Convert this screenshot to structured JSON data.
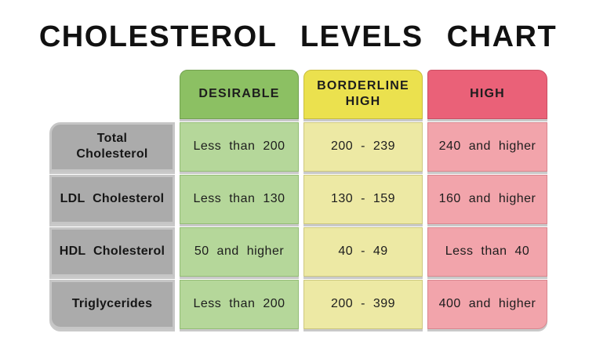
{
  "title": "CHOLESTEROL  LEVELS  CHART",
  "chart_data": {
    "type": "table",
    "title": "CHOLESTEROL LEVELS CHART",
    "column_headers": [
      "DESIRABLE",
      "BORDERLINE HIGH",
      "HIGH"
    ],
    "rows": [
      {
        "label": "Total Cholesterol",
        "values": [
          "Less than 200",
          "200 - 239",
          "240 and higher"
        ]
      },
      {
        "label": "LDL Cholesterol",
        "values": [
          "Less than 130",
          "130 - 159",
          "160 and higher"
        ]
      },
      {
        "label": "HDL Cholesterol",
        "values": [
          "50 and higher",
          "40 - 49",
          "Less than 40"
        ]
      },
      {
        "label": "Triglycerides",
        "values": [
          "Less than 200",
          "200 - 399",
          "400 and higher"
        ]
      }
    ]
  },
  "colors": {
    "header_green": "#8cc063",
    "header_yellow": "#ebe14e",
    "header_red": "#ea6178",
    "cell_green": "#b5d79a",
    "cell_yellow": "#ede9a4",
    "cell_red": "#f2a4ab",
    "label_gray": "#ababab",
    "label_gray_border": "#c6c6c6",
    "shadow_gray": "#c9c9c9",
    "background": "#ffffff",
    "text": "#1d1d1d"
  }
}
